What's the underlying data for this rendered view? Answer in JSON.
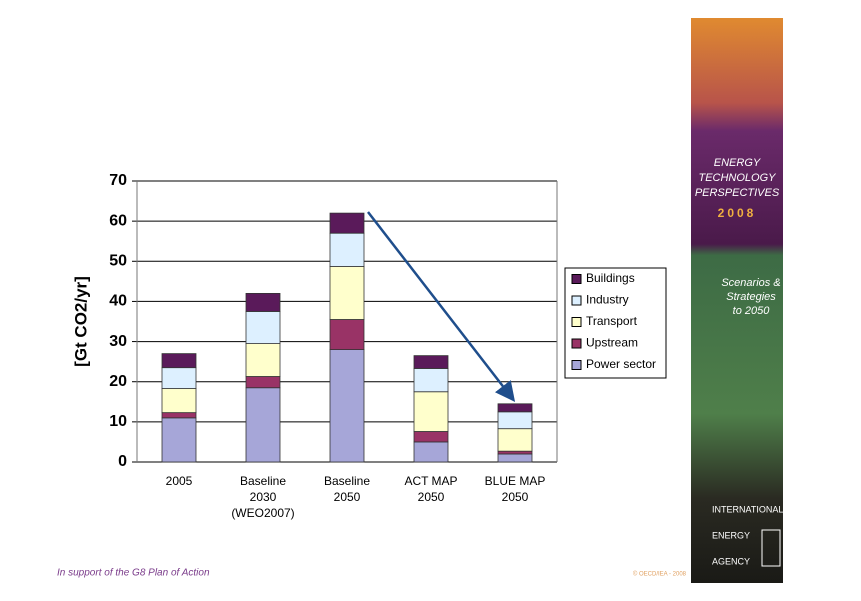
{
  "chart_data": {
    "type": "stacked_bar",
    "ylabel": "[Gt CO2/yr]",
    "categories": [
      [
        "2005"
      ],
      [
        "Baseline",
        "2030",
        "(WEO2007)"
      ],
      [
        "Baseline",
        "2050"
      ],
      [
        "ACT MAP",
        "2050"
      ],
      [
        "BLUE MAP",
        "2050"
      ]
    ],
    "series": [
      {
        "name": "Power sector",
        "color": "#a6a6d8",
        "values": [
          11,
          18.5,
          28,
          5,
          2
        ]
      },
      {
        "name": "Upstream",
        "color": "#993366",
        "values": [
          1.3,
          2.8,
          7.5,
          2.6,
          0.7
        ]
      },
      {
        "name": "Transport",
        "color": "#ffffcc",
        "values": [
          6,
          8.2,
          13.2,
          9.9,
          5.6
        ]
      },
      {
        "name": "Industry",
        "color": "#ddf0ff",
        "values": [
          5.2,
          8,
          8.3,
          5.8,
          4.2
        ]
      },
      {
        "name": "Buildings",
        "color": "#5a1a5a",
        "values": [
          3.5,
          4.5,
          5,
          3.2,
          2
        ]
      }
    ],
    "ylim": [
      0,
      70
    ],
    "yticks": [
      0,
      10,
      20,
      30,
      40,
      50,
      60,
      70
    ],
    "grid": true,
    "legend": "right"
  },
  "sidebar": {
    "title_lines": [
      "ENERGY",
      "TECHNOLOGY",
      "PERSPECTIVES"
    ],
    "year": "2008",
    "subtitle_lines": [
      "Scenarios &",
      "Strategies",
      "to 2050"
    ],
    "agency_lines": [
      "INTERNATIONAL",
      "ENERGY",
      "AGENCY"
    ]
  },
  "footer": {
    "left": "In support of the G8 Plan of Action",
    "right": "© OECD/IEA - 2008"
  }
}
